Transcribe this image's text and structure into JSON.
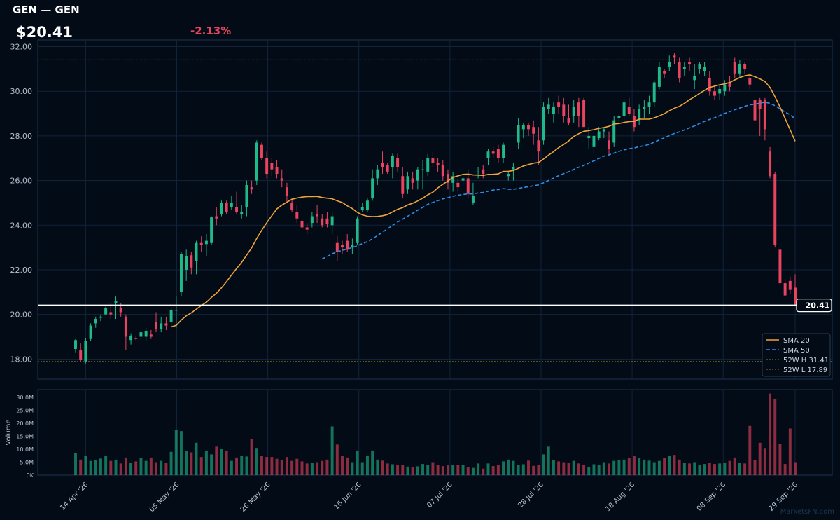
{
  "header": {
    "ticker_title": "GEN — GEN",
    "price": "$20.41",
    "change": "-2.13%"
  },
  "colors": {
    "background": "#020b16",
    "up": "#1fb98a",
    "down": "#e8435f",
    "sma20": "#f0a43c",
    "sma50": "#2f8ee6",
    "high_low_line": "#8a7a30",
    "last_price_line": "#ffffff",
    "grid": "#13233a",
    "axis_text": "#b8c2cf"
  },
  "watermark": "MarketsFN.com",
  "chart_data": {
    "type": "candlestick",
    "price_axis": {
      "ylim": [
        17.1,
        32.3
      ],
      "ticks": [
        "18.00",
        "20.00",
        "22.00",
        "24.00",
        "26.00",
        "28.00",
        "30.00",
        "32.00"
      ],
      "grid": true
    },
    "volume_axis": {
      "label": "Volume",
      "ylim": [
        0,
        33000000
      ],
      "ticks": [
        "0K",
        "5.0M",
        "10.0M",
        "15.0M",
        "20.0M",
        "25.0M",
        "30.0M"
      ]
    },
    "x_ticks": [
      "14 Apr '26",
      "05 May '26",
      "26 May '26",
      "16 Jun '26",
      "07 Jul '26",
      "28 Jul '26",
      "18 Aug '26",
      "08 Sep '26",
      "29 Sep '26"
    ],
    "last_price": {
      "value": 20.41,
      "label": "20.41"
    },
    "legend": {
      "position": "bottom-right",
      "entries": [
        {
          "key": "sma20",
          "label": "SMA 20",
          "style": "solid"
        },
        {
          "key": "sma50",
          "label": "SMA 50",
          "style": "dashed"
        },
        {
          "key": "high52",
          "label": "52W H 31.41",
          "style": "dotted"
        },
        {
          "key": "low52",
          "label": "52W L 17.89",
          "style": "dotted"
        }
      ]
    },
    "week52_high": 31.41,
    "week52_low": 17.89,
    "ohlcv": [
      [
        18.45,
        18.9,
        18.3,
        18.85,
        8.5
      ],
      [
        18.4,
        18.7,
        17.9,
        17.95,
        6.0
      ],
      [
        17.9,
        18.95,
        17.8,
        18.8,
        7.5
      ],
      [
        18.9,
        19.6,
        18.8,
        19.5,
        5.5
      ],
      [
        19.6,
        19.9,
        19.4,
        19.8,
        5.8
      ],
      [
        19.85,
        20.0,
        19.7,
        19.9,
        6.4
      ],
      [
        20.0,
        20.4,
        20.05,
        20.3,
        7.5
      ],
      [
        20.1,
        20.5,
        19.8,
        20.0,
        5.5
      ],
      [
        20.5,
        20.8,
        19.8,
        20.6,
        5.8
      ],
      [
        20.3,
        20.5,
        19.9,
        20.1,
        4.5
      ],
      [
        19.9,
        20.0,
        18.4,
        19.0,
        6.8
      ],
      [
        18.85,
        19.15,
        18.65,
        19.05,
        4.8
      ],
      [
        18.95,
        19.05,
        18.85,
        18.9,
        5.3
      ],
      [
        19.0,
        19.3,
        18.8,
        19.2,
        6.5
      ],
      [
        19.0,
        19.4,
        18.8,
        19.25,
        5.5
      ],
      [
        19.1,
        19.3,
        18.9,
        19.0,
        6.7
      ],
      [
        19.65,
        20.1,
        19.2,
        19.35,
        5.0
      ],
      [
        19.35,
        19.9,
        19.2,
        19.6,
        5.5
      ],
      [
        19.6,
        19.9,
        19.3,
        19.5,
        4.8
      ],
      [
        19.65,
        20.3,
        19.4,
        20.2,
        9.0
      ],
      [
        20.2,
        20.8,
        19.4,
        20.2,
        17.5
      ],
      [
        21.0,
        22.8,
        20.8,
        22.7,
        17.0
      ],
      [
        22.0,
        22.9,
        21.5,
        22.6,
        9.2
      ],
      [
        22.65,
        22.8,
        21.8,
        22.1,
        8.8
      ],
      [
        22.4,
        23.3,
        21.8,
        23.2,
        12.5
      ],
      [
        23.2,
        23.5,
        22.8,
        23.1,
        7.0
      ],
      [
        23.15,
        23.6,
        22.6,
        23.3,
        9.5
      ],
      [
        23.2,
        24.4,
        23.1,
        24.35,
        8.0
      ],
      [
        24.4,
        24.8,
        24.0,
        24.3,
        11.0
      ],
      [
        24.5,
        25.1,
        24.4,
        25.0,
        10.0
      ],
      [
        25.0,
        25.1,
        24.5,
        24.6,
        9.5
      ],
      [
        24.8,
        25.3,
        24.7,
        25.0,
        5.5
      ],
      [
        24.8,
        25.5,
        24.5,
        24.6,
        6.8
      ],
      [
        24.5,
        24.9,
        24.3,
        24.6,
        7.5
      ],
      [
        24.8,
        26.0,
        24.4,
        25.8,
        7.2
      ],
      [
        25.7,
        26.0,
        25.4,
        25.6,
        13.8
      ],
      [
        26.0,
        27.8,
        25.8,
        27.7,
        10.5
      ],
      [
        27.6,
        27.7,
        26.9,
        27.0,
        7.5
      ],
      [
        27.0,
        27.3,
        26.1,
        26.3,
        7.0
      ],
      [
        26.8,
        27.0,
        26.2,
        26.5,
        7.0
      ],
      [
        26.6,
        26.9,
        26.1,
        26.3,
        6.3
      ],
      [
        26.1,
        26.5,
        25.7,
        26.0,
        5.8
      ],
      [
        25.7,
        25.9,
        25.0,
        25.3,
        7.0
      ],
      [
        25.0,
        25.2,
        24.6,
        24.7,
        5.5
      ],
      [
        24.6,
        24.9,
        24.1,
        24.3,
        6.3
      ],
      [
        24.2,
        24.6,
        23.7,
        23.9,
        5.3
      ],
      [
        23.9,
        24.1,
        23.6,
        23.8,
        4.5
      ],
      [
        24.1,
        24.6,
        23.9,
        24.4,
        4.8
      ],
      [
        24.5,
        24.9,
        24.1,
        24.4,
        5.0
      ],
      [
        24.3,
        24.5,
        23.9,
        24.0,
        5.5
      ],
      [
        24.3,
        24.6,
        23.9,
        24.05,
        6.0
      ],
      [
        24.0,
        24.6,
        23.6,
        24.4,
        18.8
      ],
      [
        23.2,
        23.5,
        22.4,
        22.8,
        11.8
      ],
      [
        23.1,
        23.3,
        22.7,
        23.0,
        7.3
      ],
      [
        23.3,
        23.6,
        22.8,
        22.9,
        6.8
      ],
      [
        23.0,
        23.4,
        22.7,
        23.1,
        5.0
      ],
      [
        23.2,
        24.4,
        23.1,
        24.3,
        9.5
      ],
      [
        24.7,
        25.0,
        24.6,
        24.8,
        5.0
      ],
      [
        24.7,
        25.2,
        24.6,
        25.1,
        7.5
      ],
      [
        25.2,
        26.5,
        25.1,
        26.1,
        9.5
      ],
      [
        26.1,
        26.7,
        25.8,
        26.5,
        6.0
      ],
      [
        26.8,
        27.3,
        26.3,
        26.6,
        5.6
      ],
      [
        26.7,
        26.8,
        26.3,
        26.4,
        4.5
      ],
      [
        26.6,
        27.2,
        26.1,
        27.1,
        4.2
      ],
      [
        27.0,
        27.2,
        26.4,
        26.6,
        4.0
      ],
      [
        26.2,
        26.6,
        25.2,
        25.4,
        3.8
      ],
      [
        25.6,
        26.4,
        25.4,
        26.2,
        3.3
      ],
      [
        26.1,
        26.4,
        25.6,
        25.9,
        3.0
      ],
      [
        26.0,
        26.6,
        25.6,
        26.5,
        3.4
      ],
      [
        26.5,
        26.9,
        25.6,
        26.5,
        4.3
      ],
      [
        26.4,
        27.2,
        26.2,
        27.0,
        3.8
      ],
      [
        27.0,
        27.3,
        26.6,
        26.8,
        5.0
      ],
      [
        26.8,
        27.0,
        26.4,
        26.7,
        4.0
      ],
      [
        26.7,
        26.9,
        26.0,
        26.2,
        3.5
      ],
      [
        26.3,
        26.5,
        25.6,
        25.9,
        3.8
      ],
      [
        25.9,
        26.4,
        25.5,
        26.2,
        4.0
      ],
      [
        25.9,
        26.1,
        25.5,
        25.7,
        4.0
      ],
      [
        26.0,
        26.3,
        25.8,
        26.1,
        3.9
      ],
      [
        26.1,
        26.5,
        25.2,
        25.4,
        3.2
      ],
      [
        25.0,
        25.9,
        24.9,
        25.3,
        2.8
      ],
      [
        26.4,
        26.6,
        26.1,
        26.4,
        4.5
      ],
      [
        26.5,
        26.7,
        26.1,
        26.3,
        2.5
      ],
      [
        27.0,
        27.4,
        26.7,
        27.3,
        4.5
      ],
      [
        27.3,
        27.5,
        27.0,
        27.2,
        3.5
      ],
      [
        27.4,
        27.6,
        26.8,
        27.0,
        4.0
      ],
      [
        27.0,
        27.7,
        26.8,
        27.6,
        5.3
      ],
      [
        26.2,
        26.4,
        26.0,
        26.3,
        6.0
      ],
      [
        26.5,
        26.8,
        26.0,
        26.6,
        5.5
      ],
      [
        27.7,
        28.8,
        27.4,
        28.5,
        3.8
      ],
      [
        28.3,
        28.6,
        27.9,
        28.5,
        4.2
      ],
      [
        28.5,
        28.6,
        28.0,
        28.3,
        5.6
      ],
      [
        28.4,
        28.7,
        27.6,
        28.1,
        3.6
      ],
      [
        27.8,
        28.4,
        26.7,
        27.3,
        4.0
      ],
      [
        27.8,
        29.5,
        27.6,
        29.3,
        8.0
      ],
      [
        29.2,
        29.7,
        29.0,
        29.4,
        11.0
      ],
      [
        29.0,
        29.5,
        28.6,
        29.3,
        5.8
      ],
      [
        29.5,
        29.8,
        29.0,
        29.3,
        5.3
      ],
      [
        29.4,
        29.7,
        28.6,
        28.9,
        5.0
      ],
      [
        28.8,
        29.4,
        28.5,
        28.6,
        4.6
      ],
      [
        28.9,
        29.6,
        28.6,
        29.3,
        5.5
      ],
      [
        29.5,
        29.7,
        28.4,
        28.9,
        4.5
      ],
      [
        29.6,
        29.7,
        28.6,
        28.4,
        3.8
      ],
      [
        27.9,
        28.4,
        27.4,
        28.0,
        3.0
      ],
      [
        27.5,
        28.2,
        27.2,
        28.0,
        4.2
      ],
      [
        27.9,
        28.4,
        27.8,
        28.2,
        4.0
      ],
      [
        28.2,
        28.4,
        27.9,
        28.3,
        5.0
      ],
      [
        27.8,
        28.2,
        27.1,
        27.4,
        4.5
      ],
      [
        27.7,
        28.9,
        27.5,
        28.7,
        5.5
      ],
      [
        28.8,
        29.0,
        28.6,
        28.9,
        5.8
      ],
      [
        28.9,
        29.6,
        28.6,
        29.5,
        6.0
      ],
      [
        29.3,
        29.7,
        28.9,
        29.0,
        6.5
      ],
      [
        28.9,
        29.2,
        28.2,
        28.4,
        7.5
      ],
      [
        28.7,
        29.4,
        28.5,
        29.2,
        6.5
      ],
      [
        29.2,
        29.6,
        28.8,
        29.3,
        6.0
      ],
      [
        29.3,
        29.8,
        29.0,
        29.5,
        5.6
      ],
      [
        29.5,
        30.5,
        29.3,
        30.4,
        5.0
      ],
      [
        30.2,
        31.3,
        30.1,
        31.1,
        5.5
      ],
      [
        30.9,
        31.0,
        30.6,
        30.8,
        6.5
      ],
      [
        31.1,
        31.6,
        30.9,
        31.3,
        7.5
      ],
      [
        31.6,
        31.7,
        31.2,
        31.5,
        7.8
      ],
      [
        31.3,
        31.5,
        30.4,
        30.6,
        6.0
      ],
      [
        31.0,
        31.3,
        30.7,
        31.1,
        4.8
      ],
      [
        31.3,
        31.5,
        30.9,
        31.2,
        4.5
      ],
      [
        30.5,
        31.2,
        30.1,
        30.7,
        5.0
      ],
      [
        31.0,
        31.3,
        30.8,
        31.2,
        4.0
      ],
      [
        30.9,
        31.3,
        30.7,
        31.1,
        4.3
      ],
      [
        30.6,
        30.9,
        29.8,
        30.0,
        4.8
      ],
      [
        30.0,
        30.3,
        29.6,
        29.8,
        4.3
      ],
      [
        29.9,
        30.3,
        29.6,
        30.1,
        4.5
      ],
      [
        30.0,
        30.5,
        29.8,
        30.3,
        4.8
      ],
      [
        30.4,
        30.7,
        30.0,
        30.2,
        5.5
      ],
      [
        31.3,
        31.5,
        30.6,
        30.8,
        6.8
      ],
      [
        30.8,
        31.4,
        30.6,
        31.2,
        4.8
      ],
      [
        31.2,
        31.3,
        30.8,
        31.0,
        4.5
      ],
      [
        30.6,
        30.8,
        30.1,
        30.3,
        19.0
      ],
      [
        29.6,
        29.9,
        28.5,
        28.7,
        5.8
      ],
      [
        29.6,
        29.7,
        28.0,
        29.2,
        12.5
      ],
      [
        29.6,
        29.7,
        27.8,
        28.3,
        10.5
      ],
      [
        27.3,
        27.5,
        26.1,
        26.2,
        31.5
      ],
      [
        26.3,
        26.4,
        23.0,
        23.1,
        29.5
      ],
      [
        22.9,
        23.0,
        21.3,
        21.4,
        12.0
      ],
      [
        21.4,
        21.6,
        20.8,
        20.85,
        4.3
      ],
      [
        21.5,
        21.7,
        20.9,
        21.1,
        18.0
      ],
      [
        21.2,
        21.8,
        20.4,
        20.41,
        5.0
      ]
    ]
  }
}
